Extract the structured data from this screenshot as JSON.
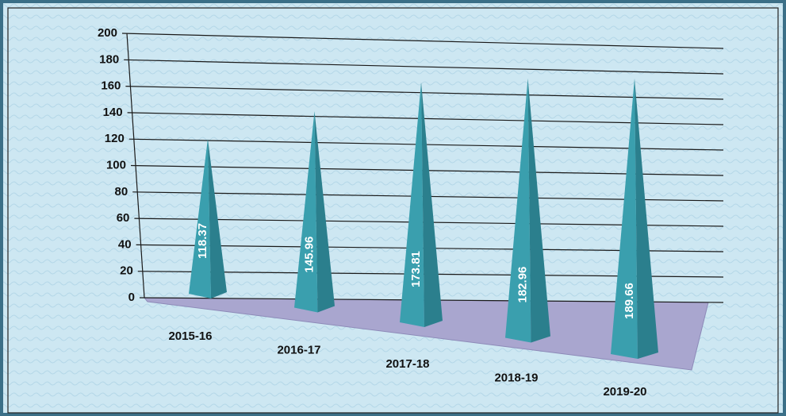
{
  "chart_data": {
    "type": "pyramid",
    "categories": [
      "2015-16",
      "2016-17",
      "2017-18",
      "2018-19",
      "2019-20"
    ],
    "values": [
      118.37,
      145.96,
      173.81,
      182.96,
      189.66
    ],
    "color": "#3a9fae",
    "ylim": [
      0,
      200
    ],
    "yticks": [
      0,
      20,
      40,
      60,
      80,
      100,
      120,
      140,
      160,
      180,
      200
    ],
    "grid": true
  }
}
